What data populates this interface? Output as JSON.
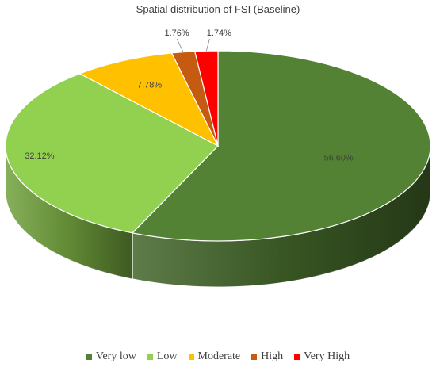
{
  "chart_data": {
    "type": "pie",
    "title": "Spatial distribution of FSI (Baseline)",
    "categories": [
      "Very low",
      "Low",
      "Moderate",
      "High",
      "Very High"
    ],
    "values": [
      56.6,
      32.12,
      7.78,
      1.76,
      1.74
    ],
    "labels": [
      "56.60%",
      "32.12%",
      "7.78%",
      "1.76%",
      "1.74%"
    ],
    "colors": [
      "#548235",
      "#92D050",
      "#FFC000",
      "#C55A11",
      "#FF0000"
    ],
    "legend_position": "bottom",
    "style": "3d"
  }
}
